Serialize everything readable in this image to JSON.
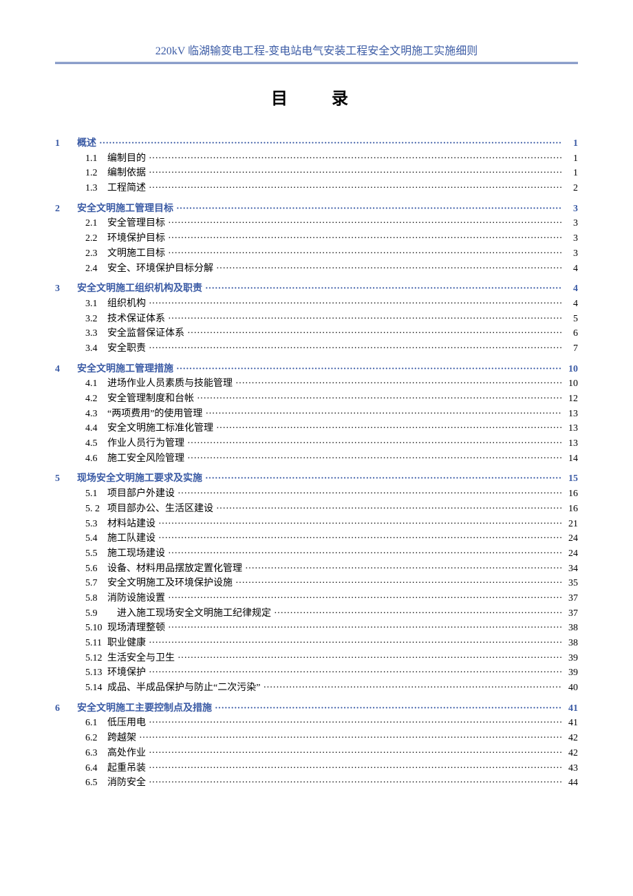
{
  "header": {
    "title": "220kV 临湖输变电工程-变电站电气安装工程安全文明施工实施细则",
    "color": "#3b5ba5",
    "fontsize": 16
  },
  "toc": {
    "title": "目　录",
    "title_fontsize": 24,
    "section_color": "#3b5ba5",
    "sub_color": "#000000",
    "fontsize": 14,
    "sections": [
      {
        "num": "1",
        "label": "概述",
        "page": "1",
        "subs": [
          {
            "num": "1.1",
            "label": "编制目的",
            "page": "1"
          },
          {
            "num": "1.2",
            "label": "编制依据",
            "page": "1"
          },
          {
            "num": "1.3",
            "label": "工程简述",
            "page": "2"
          }
        ]
      },
      {
        "num": "2",
        "label": "安全文明施工管理目标",
        "page": "3",
        "subs": [
          {
            "num": "2.1",
            "label": "安全管理目标",
            "page": "3"
          },
          {
            "num": "2.2",
            "label": "环境保护目标",
            "page": "3"
          },
          {
            "num": "2.3",
            "label": "文明施工目标",
            "page": "3"
          },
          {
            "num": "2.4",
            "label": "安全、环境保护目标分解",
            "page": "4"
          }
        ]
      },
      {
        "num": "3",
        "label": "安全文明施工组织机构及职责",
        "page": "4",
        "subs": [
          {
            "num": "3.1",
            "label": "组织机构",
            "page": "4"
          },
          {
            "num": "3.2",
            "label": "技术保证体系",
            "page": "5"
          },
          {
            "num": "3.3",
            "label": "安全监督保证体系",
            "page": "6"
          },
          {
            "num": "3.4",
            "label": "安全职责",
            "page": "7"
          }
        ]
      },
      {
        "num": "4",
        "label": "安全文明施工管理措施",
        "page": "10",
        "subs": [
          {
            "num": "4.1",
            "label": "进场作业人员素质与技能管理",
            "page": "10"
          },
          {
            "num": "4.2",
            "label": "安全管理制度和台帐",
            "page": "12"
          },
          {
            "num": "4.3",
            "label": "“两项费用”的使用管理",
            "page": "13"
          },
          {
            "num": "4.4",
            "label": "安全文明施工标准化管理",
            "page": "13"
          },
          {
            "num": "4.5",
            "label": "作业人员行为管理",
            "page": "13"
          },
          {
            "num": "4.6",
            "label": "施工安全风险管理",
            "page": "14"
          }
        ]
      },
      {
        "num": "5",
        "label": "现场安全文明施工要求及实施",
        "page": "15",
        "subs": [
          {
            "num": "5.1",
            "label": "项目部户外建设",
            "page": "16"
          },
          {
            "num": "5. 2",
            "label": "项目部办公、生活区建设",
            "page": "16"
          },
          {
            "num": "5.3",
            "label": "材料站建设",
            "page": "21"
          },
          {
            "num": "5.4",
            "label": "施工队建设",
            "page": "24"
          },
          {
            "num": "5.5",
            "label": "施工现场建设",
            "page": "24"
          },
          {
            "num": "5.6",
            "label": "设备、材料用品摆放定置化管理",
            "page": "34"
          },
          {
            "num": "5.7",
            "label": "安全文明施工及环境保护设施",
            "page": "35"
          },
          {
            "num": "5.8",
            "label": "消防设施设置",
            "page": "37"
          },
          {
            "num": "5.9",
            "label": "　进入施工现场安全文明施工纪律规定",
            "page": "37"
          },
          {
            "num": "5.10",
            "label": "现场清理整顿",
            "page": "38"
          },
          {
            "num": "5.11",
            "label": "职业健康",
            "page": "38"
          },
          {
            "num": "5.12",
            "label": "生活安全与卫生",
            "page": "39"
          },
          {
            "num": "5.13",
            "label": "环境保护",
            "page": "39"
          },
          {
            "num": "5.14",
            "label": "成品、半成品保护与防止“二次污染”",
            "page": "40"
          }
        ]
      },
      {
        "num": "6",
        "label": "安全文明施工主要控制点及措施",
        "page": "41",
        "subs": [
          {
            "num": "6.1",
            "label": "低压用电",
            "page": "41"
          },
          {
            "num": "6.2",
            "label": "跨越架",
            "page": "42"
          },
          {
            "num": "6.3",
            "label": "高处作业",
            "page": "42"
          },
          {
            "num": "6.4",
            "label": "起重吊装",
            "page": "43"
          },
          {
            "num": "6.5",
            "label": "消防安全",
            "page": "44"
          }
        ]
      }
    ]
  }
}
